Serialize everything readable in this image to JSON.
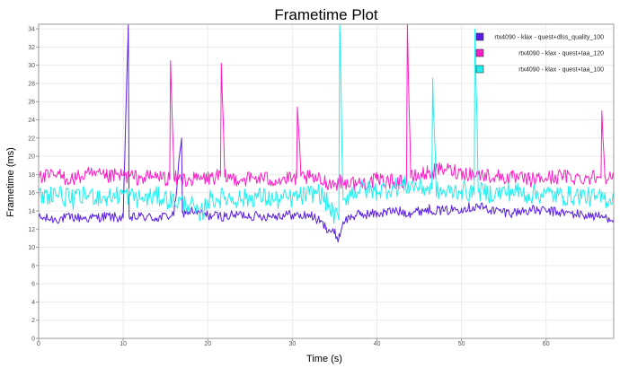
{
  "chart_data": {
    "type": "line",
    "title": "Frametime Plot",
    "xlabel": "Time (s)",
    "ylabel": "Frametime (ms)",
    "xlim": [
      0,
      68
    ],
    "ylim": [
      0,
      34.5
    ],
    "grid": true,
    "legend_position": "top-right",
    "x_ticks": [
      0,
      10,
      20,
      30,
      40,
      50,
      60
    ],
    "y_ticks": [
      0,
      2,
      4,
      6,
      8,
      10,
      12,
      14,
      16,
      18,
      20,
      22,
      24,
      26,
      28,
      30,
      32,
      34
    ],
    "x_tick_labels": [
      "0",
      "10",
      "20",
      "30",
      "40",
      "50",
      "60"
    ],
    "y_tick_labels": [
      "0",
      "2",
      "4",
      "6",
      "8",
      "10",
      "12",
      "14",
      "16",
      "18",
      "20",
      "22",
      "24",
      "26",
      "28",
      "30",
      "32",
      "34"
    ],
    "series": [
      {
        "name": "rtx4090 - klax - quest+dlss_quality_100",
        "color": "#5a1ee6",
        "x": [
          0,
          2,
          4,
          6,
          8,
          10,
          10.6,
          10.7,
          11,
          12,
          14,
          16,
          16.9,
          17,
          18,
          20,
          22,
          24,
          26,
          28,
          30,
          31,
          32,
          33,
          34,
          35,
          35.5,
          36,
          37,
          38,
          40,
          42,
          44,
          46,
          48,
          50,
          52,
          54,
          56,
          58,
          60,
          62,
          64,
          66,
          68
        ],
        "y": [
          13.2,
          13.1,
          13.3,
          13.2,
          13.4,
          13.2,
          34.5,
          13.3,
          13.2,
          13.4,
          13.2,
          13.6,
          22.0,
          13.8,
          14.0,
          13.5,
          13.4,
          13.6,
          13.4,
          13.5,
          13.6,
          13.4,
          13.6,
          13.0,
          12.2,
          11.5,
          11.0,
          12.8,
          13.4,
          13.6,
          13.7,
          14.0,
          13.8,
          14.2,
          14.0,
          14.3,
          14.5,
          14.0,
          13.8,
          14.1,
          14.0,
          13.8,
          13.6,
          13.4,
          13.2
        ]
      },
      {
        "name": "rtx4090 - klax - quest+taa_120",
        "color": "#ff1dc8",
        "x": [
          0,
          2,
          4,
          6,
          8,
          10,
          12,
          14,
          15.5,
          15.6,
          16,
          18,
          20,
          21.5,
          21.6,
          22,
          24,
          26,
          28,
          30,
          30.5,
          30.6,
          31,
          32,
          33,
          34,
          35,
          36,
          38,
          40,
          42,
          43.5,
          43.6,
          44,
          46,
          48,
          50,
          52,
          54,
          56,
          58,
          60,
          62,
          64,
          66,
          66.5,
          66.6,
          67,
          68
        ],
        "y": [
          17.6,
          17.9,
          17.5,
          18.0,
          17.7,
          17.9,
          17.6,
          17.8,
          17.5,
          30.5,
          17.6,
          17.4,
          17.6,
          17.8,
          30.2,
          17.7,
          17.5,
          17.6,
          17.4,
          17.5,
          17.6,
          25.4,
          17.8,
          17.6,
          17.4,
          17.2,
          17.0,
          17.2,
          17.0,
          17.4,
          17.2,
          17.3,
          34.5,
          17.6,
          18.2,
          18.6,
          18.2,
          18.0,
          17.8,
          17.6,
          17.4,
          17.6,
          17.8,
          17.6,
          17.8,
          17.6,
          25.0,
          17.8,
          17.5
        ]
      },
      {
        "name": "rtx4090 - klax - quest+taa_100",
        "color": "#1ef0f0",
        "x": [
          0,
          2,
          4,
          6,
          8,
          10,
          12,
          14,
          16,
          18,
          19,
          20,
          22,
          24,
          26,
          28,
          30,
          32,
          33,
          34,
          35,
          35.5,
          35.6,
          36,
          37,
          38,
          40,
          42,
          44,
          46,
          46.5,
          46.6,
          47,
          48,
          50,
          51.5,
          51.6,
          52,
          54,
          56,
          58,
          60,
          62,
          64,
          66,
          68
        ],
        "y": [
          15.5,
          16.0,
          15.2,
          15.8,
          15.4,
          15.9,
          15.3,
          15.6,
          15.1,
          14.8,
          13.2,
          15.2,
          15.5,
          15.3,
          15.6,
          15.2,
          15.4,
          15.8,
          16.2,
          15.0,
          13.5,
          13.0,
          34.5,
          15.2,
          16.0,
          16.4,
          16.2,
          16.6,
          16.8,
          16.5,
          16.4,
          28.6,
          16.2,
          16.0,
          16.3,
          15.8,
          34.0,
          16.1,
          15.9,
          16.2,
          15.8,
          15.9,
          15.6,
          15.7,
          15.4,
          15.3
        ]
      }
    ]
  }
}
